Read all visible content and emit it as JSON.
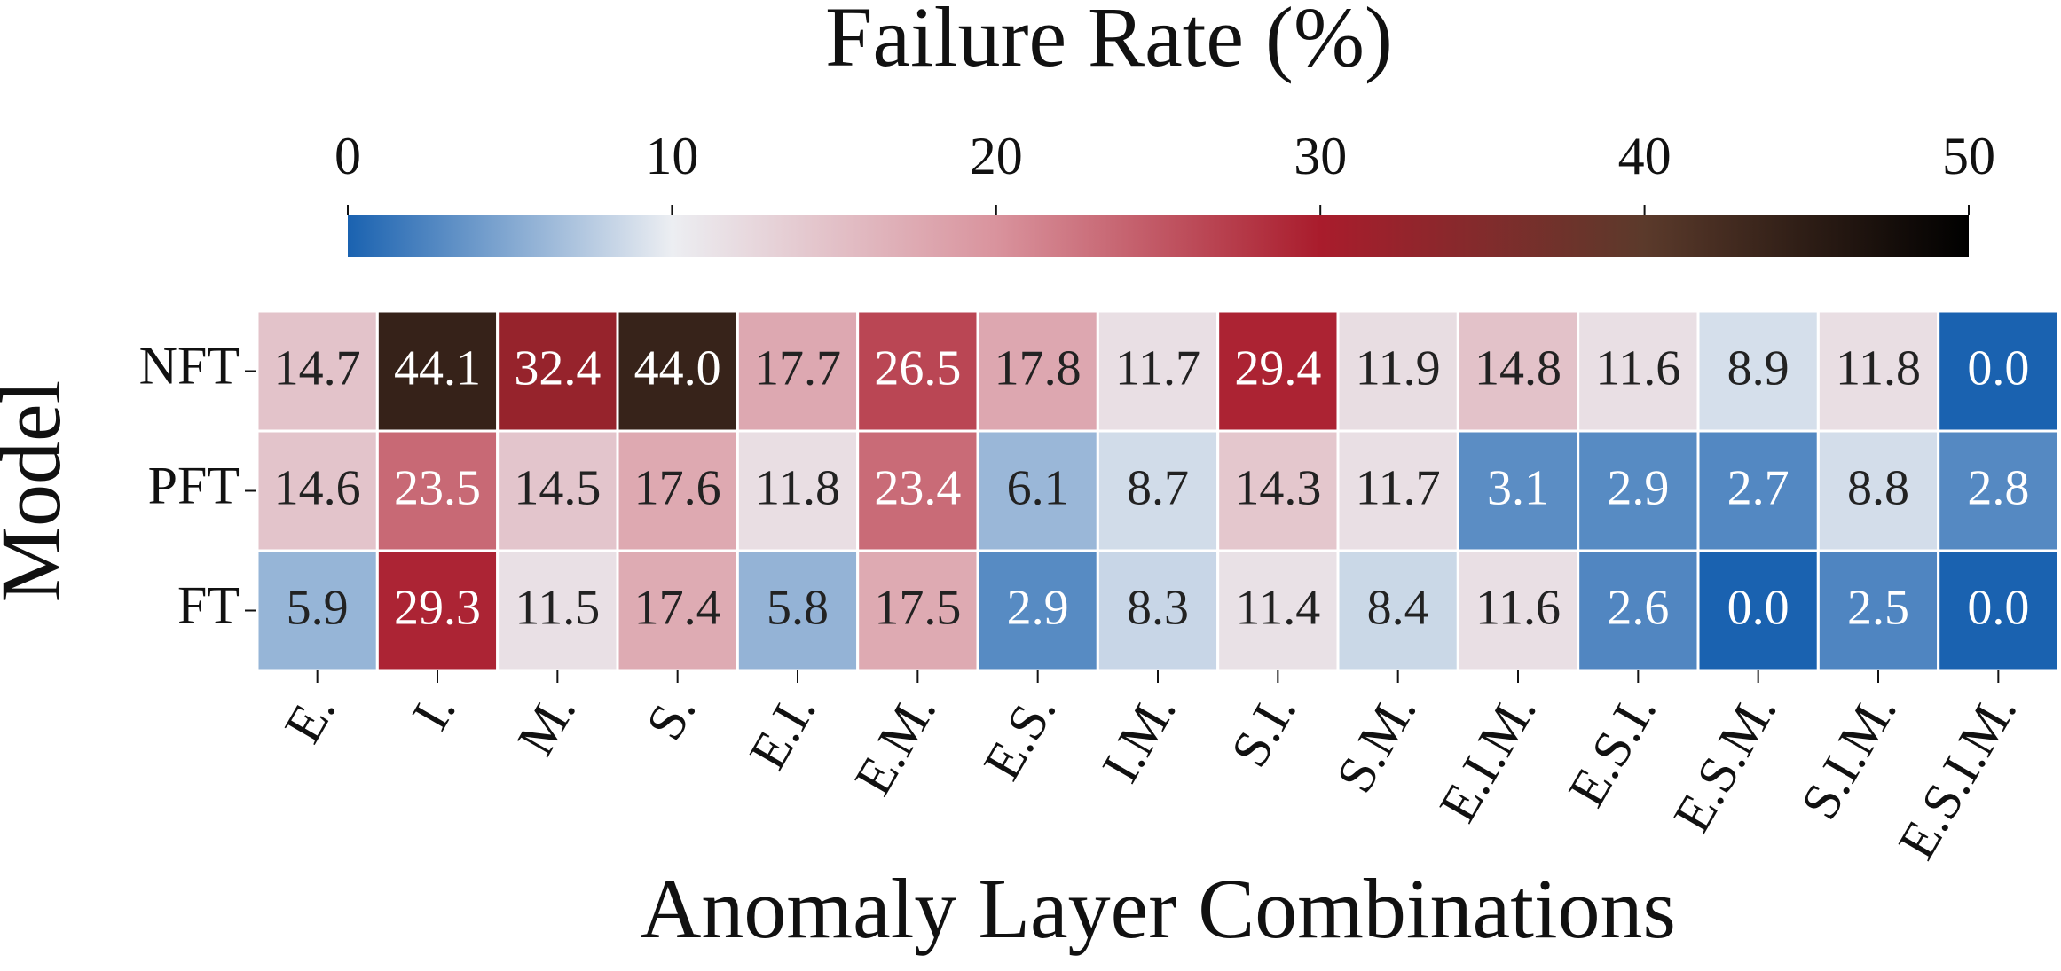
{
  "chart_data": {
    "type": "heatmap",
    "title": "Failure Rate (%)",
    "x_label": "Anomaly Layer Combinations",
    "y_label": "Model",
    "categories": [
      "E.",
      "I.",
      "M.",
      "S.",
      "E.I.",
      "E.M.",
      "E.S.",
      "I.M.",
      "S.I.",
      "S.M.",
      "E.I.M.",
      "E.S.I.",
      "E.S.M.",
      "S.I.M.",
      "E.S.I.M."
    ],
    "rows": [
      "NFT",
      "PFT",
      "FT"
    ],
    "values": [
      [
        14.7,
        44.1,
        32.4,
        44.0,
        17.7,
        26.5,
        17.8,
        11.7,
        29.4,
        11.9,
        14.8,
        11.6,
        8.9,
        11.8,
        0.0
      ],
      [
        14.6,
        23.5,
        14.5,
        17.6,
        11.8,
        23.4,
        6.1,
        8.7,
        14.3,
        11.7,
        3.1,
        2.9,
        2.7,
        8.8,
        2.8
      ],
      [
        5.9,
        29.3,
        11.5,
        17.4,
        5.8,
        17.5,
        2.9,
        8.3,
        11.4,
        8.4,
        11.6,
        2.6,
        0.0,
        2.5,
        0.0
      ]
    ],
    "value_labels": [
      [
        "14.7",
        "44.1",
        "32.4",
        "44.0",
        "17.7",
        "26.5",
        "17.8",
        "11.7",
        "29.4",
        "11.9",
        "14.8",
        "11.6",
        "8.9",
        "11.8",
        "0.0"
      ],
      [
        "14.6",
        "23.5",
        "14.5",
        "17.6",
        "11.8",
        "23.4",
        "6.1",
        "8.7",
        "14.3",
        "11.7",
        "3.1",
        "2.9",
        "2.7",
        "8.8",
        "2.8"
      ],
      [
        "5.9",
        "29.3",
        "11.5",
        "17.4",
        "5.8",
        "17.5",
        "2.9",
        "8.3",
        "11.4",
        "8.4",
        "11.6",
        "2.6",
        "0.0",
        "2.5",
        "0.0"
      ]
    ],
    "clim": [
      0,
      50
    ],
    "cticks": [
      0,
      10,
      20,
      30,
      40,
      50
    ],
    "colors": [
      "#1a62b0",
      "#eceef2",
      "#d9939d",
      "#a91c2c",
      "#5b3a2b",
      "#000000"
    ]
  }
}
